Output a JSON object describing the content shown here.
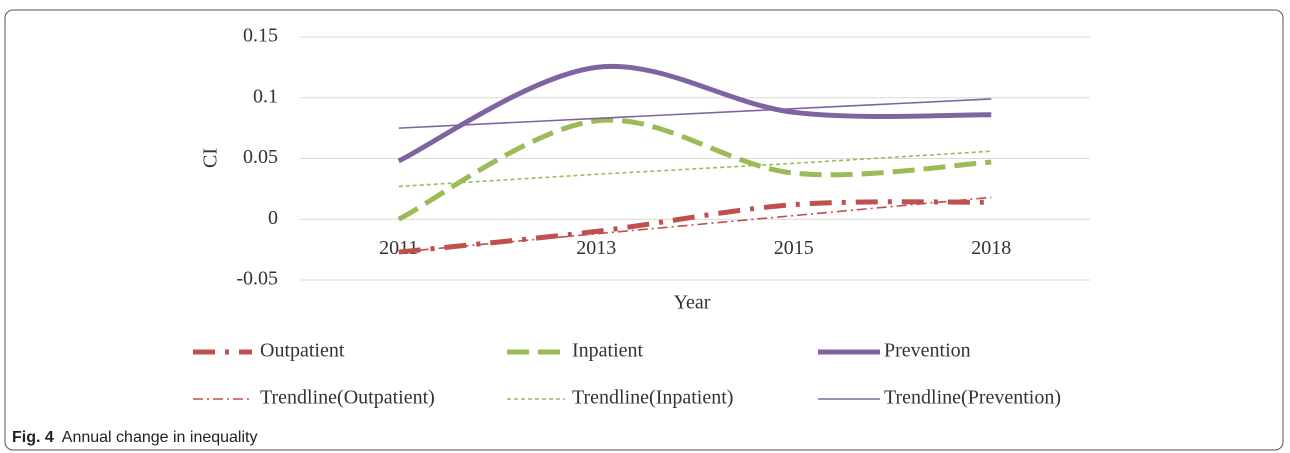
{
  "chart_data": {
    "type": "line",
    "categories": [
      "2011",
      "2013",
      "2015",
      "2018"
    ],
    "x_label": "Year",
    "y_label": "CI",
    "ylim": [
      -0.05,
      0.15
    ],
    "yticks": [
      -0.05,
      0,
      0.05,
      0.1,
      0.15
    ],
    "grid": true,
    "smooth": true,
    "series": [
      {
        "name": "Outpatient",
        "color": "#c0504d",
        "style": "dash-dot",
        "line_width": "thick",
        "values": [
          -0.027,
          -0.01,
          0.012,
          0.014
        ]
      },
      {
        "name": "Inpatient",
        "color": "#9bbb59",
        "style": "dash",
        "line_width": "thick",
        "values": [
          0,
          0.081,
          0.038,
          0.047
        ]
      },
      {
        "name": "Prevention",
        "color": "#8064a2",
        "style": "solid",
        "line_width": "thick",
        "values": [
          0.048,
          0.125,
          0.088,
          0.086
        ]
      },
      {
        "name": "Trendline(Outpatient)",
        "color": "#c0504d",
        "style": "dash-dot",
        "line_width": "thin",
        "values": [
          -0.027,
          -0.012,
          0.003,
          0.018
        ]
      },
      {
        "name": "Trendline(Inpatient)",
        "color": "#9bbb59",
        "style": "dash",
        "line_width": "thin",
        "values": [
          0.027,
          0.037,
          0.046,
          0.056
        ]
      },
      {
        "name": "Trendline(Prevention)",
        "color": "#8064a2",
        "style": "solid",
        "line_width": "thin",
        "values": [
          0.075,
          0.083,
          0.091,
          0.099
        ]
      }
    ]
  },
  "caption": {
    "label": "Fig. 4",
    "text": "Annual change in inequality"
  }
}
